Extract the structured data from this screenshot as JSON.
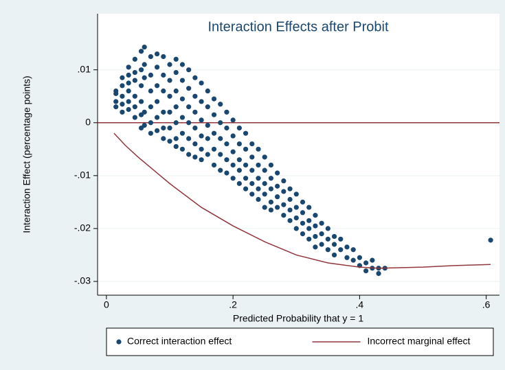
{
  "chart_data": {
    "type": "scatter",
    "title": "Interaction Effects after Probit",
    "x_label": "Predicted Probability that y = 1",
    "y_label": "Interaction Effect (percentage points)",
    "xlim": [
      -0.014,
      0.621
    ],
    "ylim": [
      -0.0326,
      0.0206
    ],
    "xticks": [
      0,
      {
        "value": 0.2,
        "label": ".2"
      },
      {
        "value": 0.4,
        "label": ".4"
      },
      {
        "value": 0.6,
        "label": ".6"
      }
    ],
    "yticks": [
      {
        "value": -0.03,
        "label": "-.03"
      },
      {
        "value": -0.02,
        "label": "-.02"
      },
      {
        "value": -0.01,
        "label": "-.01"
      },
      0,
      {
        "value": 0.01,
        "label": ".01"
      }
    ],
    "grid": true,
    "yline": 0,
    "yline_color": "#90353b",
    "legend": "bottom",
    "series": [
      {
        "name": "Correct interaction effect",
        "type": "scatter",
        "color": "#1a476f",
        "x": [
          0.015,
          0.015,
          0.015,
          0.015,
          0.025,
          0.025,
          0.025,
          0.025,
          0.025,
          0.035,
          0.035,
          0.035,
          0.035,
          0.035,
          0.035,
          0.045,
          0.045,
          0.045,
          0.045,
          0.045,
          0.045,
          0.055,
          0.055,
          0.055,
          0.055,
          0.055,
          0.055,
          0.06,
          0.06,
          0.06,
          0.06,
          0.06,
          0.07,
          0.07,
          0.07,
          0.07,
          0.07,
          0.07,
          0.08,
          0.08,
          0.08,
          0.08,
          0.08,
          0.08,
          0.09,
          0.09,
          0.09,
          0.09,
          0.09,
          0.09,
          0.1,
          0.1,
          0.1,
          0.1,
          0.1,
          0.1,
          0.11,
          0.11,
          0.11,
          0.11,
          0.11,
          0.11,
          0.11,
          0.12,
          0.12,
          0.12,
          0.12,
          0.12,
          0.12,
          0.13,
          0.13,
          0.13,
          0.13,
          0.13,
          0.13,
          0.14,
          0.14,
          0.14,
          0.14,
          0.14,
          0.14,
          0.15,
          0.15,
          0.15,
          0.15,
          0.15,
          0.15,
          0.16,
          0.16,
          0.16,
          0.16,
          0.16,
          0.17,
          0.17,
          0.17,
          0.17,
          0.17,
          0.18,
          0.18,
          0.18,
          0.18,
          0.18,
          0.19,
          0.19,
          0.19,
          0.19,
          0.19,
          0.2,
          0.2,
          0.2,
          0.2,
          0.2,
          0.21,
          0.21,
          0.21,
          0.21,
          0.21,
          0.22,
          0.22,
          0.22,
          0.22,
          0.22,
          0.23,
          0.23,
          0.23,
          0.23,
          0.23,
          0.24,
          0.24,
          0.24,
          0.24,
          0.24,
          0.25,
          0.25,
          0.25,
          0.25,
          0.25,
          0.26,
          0.26,
          0.26,
          0.26,
          0.26,
          0.27,
          0.27,
          0.27,
          0.27,
          0.28,
          0.28,
          0.28,
          0.28,
          0.29,
          0.29,
          0.29,
          0.29,
          0.3,
          0.3,
          0.3,
          0.3,
          0.31,
          0.31,
          0.31,
          0.31,
          0.32,
          0.32,
          0.32,
          0.32,
          0.33,
          0.33,
          0.33,
          0.33,
          0.34,
          0.34,
          0.34,
          0.35,
          0.35,
          0.35,
          0.36,
          0.36,
          0.36,
          0.37,
          0.37,
          0.38,
          0.38,
          0.39,
          0.39,
          0.4,
          0.4,
          0.41,
          0.41,
          0.42,
          0.42,
          0.43,
          0.43,
          0.44,
          0.607
        ],
        "values": [
          0.006,
          0.004,
          0.0055,
          0.003,
          0.007,
          0.005,
          0.0035,
          0.0085,
          0.002,
          0.009,
          0.006,
          0.004,
          0.0025,
          0.0105,
          0.0075,
          0.012,
          0.008,
          0.005,
          0.003,
          0.001,
          0.0095,
          0.0135,
          0.01,
          0.007,
          0.004,
          0.0015,
          -0.001,
          0.0143,
          0.011,
          0.0085,
          0.002,
          -0.0005,
          0.0125,
          0.009,
          0.006,
          0.003,
          0,
          -0.002,
          0.013,
          0.0105,
          0.007,
          0.004,
          0.001,
          -0.0015,
          0.0125,
          0.009,
          0.006,
          0.002,
          -0.001,
          -0.003,
          0.011,
          0.008,
          0.005,
          0.002,
          -0.001,
          -0.0035,
          0.012,
          0.0095,
          0.006,
          0.003,
          0,
          -0.003,
          -0.0045,
          0.011,
          0.008,
          0.0045,
          0.001,
          -0.002,
          -0.005,
          0.01,
          0.0065,
          0.003,
          0,
          -0.003,
          -0.006,
          0.0085,
          0.005,
          0.002,
          -0.001,
          -0.004,
          -0.0065,
          0.0075,
          0.004,
          0.0005,
          -0.0025,
          -0.005,
          -0.007,
          0.006,
          0.003,
          -0.0005,
          -0.003,
          -0.006,
          0.0045,
          0.0015,
          -0.002,
          -0.005,
          -0.008,
          0.0035,
          0,
          -0.003,
          -0.006,
          -0.009,
          0.002,
          -0.001,
          -0.004,
          -0.007,
          -0.0095,
          0.0005,
          -0.0025,
          -0.0055,
          -0.008,
          -0.0105,
          -0.001,
          -0.004,
          -0.007,
          -0.009,
          -0.0115,
          -0.002,
          -0.005,
          -0.008,
          -0.0105,
          -0.0125,
          -0.004,
          -0.0065,
          -0.009,
          -0.0115,
          -0.0135,
          -0.005,
          -0.008,
          -0.0105,
          -0.0125,
          -0.0145,
          -0.0065,
          -0.009,
          -0.0115,
          -0.0135,
          -0.016,
          -0.008,
          -0.0105,
          -0.0125,
          -0.015,
          -0.0165,
          -0.0095,
          -0.012,
          -0.014,
          -0.016,
          -0.011,
          -0.013,
          -0.0155,
          -0.0175,
          -0.0125,
          -0.0145,
          -0.0165,
          -0.0185,
          -0.0135,
          -0.016,
          -0.018,
          -0.02,
          -0.015,
          -0.017,
          -0.019,
          -0.021,
          -0.016,
          -0.0185,
          -0.02,
          -0.022,
          -0.0175,
          -0.0195,
          -0.0215,
          -0.0235,
          -0.019,
          -0.021,
          -0.023,
          -0.02,
          -0.022,
          -0.024,
          -0.0215,
          -0.023,
          -0.025,
          -0.022,
          -0.024,
          -0.0235,
          -0.0255,
          -0.024,
          -0.026,
          -0.0255,
          -0.027,
          -0.0265,
          -0.028,
          -0.026,
          -0.0275,
          -0.0275,
          -0.0285,
          -0.0275,
          -0.0222
        ]
      },
      {
        "name": "Incorrect marginal effect",
        "type": "line",
        "color": "#90353b",
        "x": [
          0.012,
          0.03,
          0.05,
          0.08,
          0.1,
          0.15,
          0.2,
          0.25,
          0.3,
          0.35,
          0.4,
          0.43,
          0.5,
          0.55,
          0.607
        ],
        "values": [
          -0.002,
          -0.0043,
          -0.0065,
          -0.0095,
          -0.0115,
          -0.016,
          -0.0195,
          -0.0225,
          -0.025,
          -0.0265,
          -0.0273,
          -0.0275,
          -0.0273,
          -0.027,
          -0.0268
        ]
      }
    ]
  }
}
